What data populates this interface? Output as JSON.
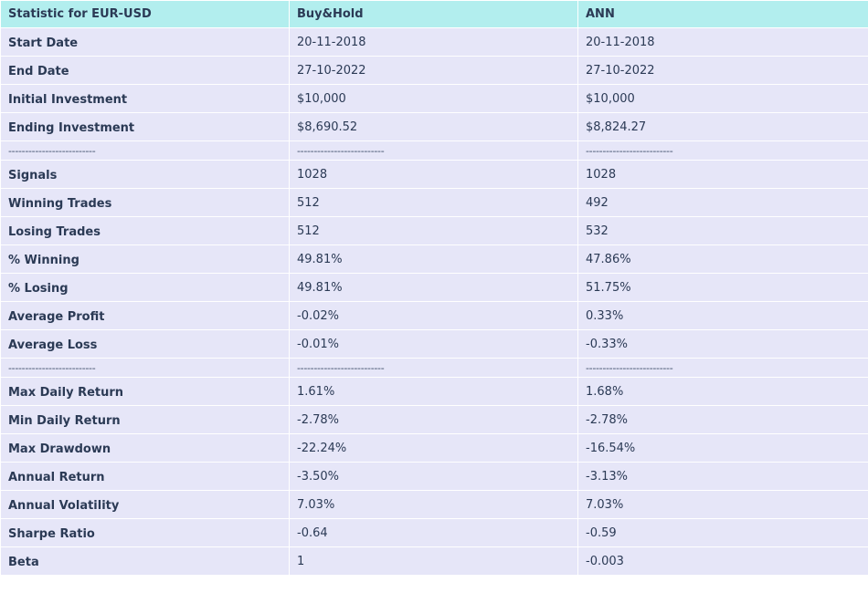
{
  "table": {
    "headers": [
      "Statistic for EUR-USD",
      "Buy&Hold",
      "ANN"
    ],
    "rows": [
      {
        "label": "Start Date",
        "buyhold": "20-11-2018",
        "ann": "20-11-2018"
      },
      {
        "label": "End Date",
        "buyhold": "27-10-2022",
        "ann": "27-10-2022"
      },
      {
        "label": "Initial Investment",
        "buyhold": "$10,000",
        "ann": "$10,000"
      },
      {
        "label": "Ending Investment",
        "buyhold": "$8,690.52",
        "ann": "$8,824.27"
      },
      {
        "label": "--------------------------",
        "buyhold": "--------------------------",
        "ann": "--------------------------",
        "separator": true
      },
      {
        "label": "Signals",
        "buyhold": "1028",
        "ann": "1028"
      },
      {
        "label": "Winning Trades",
        "buyhold": "512",
        "ann": "492"
      },
      {
        "label": "Losing Trades",
        "buyhold": "512",
        "ann": "532"
      },
      {
        "label": "% Winning",
        "buyhold": "49.81%",
        "ann": "47.86%"
      },
      {
        "label": "% Losing",
        "buyhold": "49.81%",
        "ann": "51.75%"
      },
      {
        "label": "Average Profit",
        "buyhold": "-0.02%",
        "ann": "0.33%"
      },
      {
        "label": "Average Loss",
        "buyhold": "-0.01%",
        "ann": "-0.33%"
      },
      {
        "label": "--------------------------",
        "buyhold": "--------------------------",
        "ann": "--------------------------",
        "separator": true
      },
      {
        "label": "Max Daily Return",
        "buyhold": "1.61%",
        "ann": "1.68%"
      },
      {
        "label": "Min Daily Return",
        "buyhold": "-2.78%",
        "ann": "-2.78%"
      },
      {
        "label": "Max Drawdown",
        "buyhold": "-22.24%",
        "ann": "-16.54%"
      },
      {
        "label": "Annual Return",
        "buyhold": "-3.50%",
        "ann": "-3.13%"
      },
      {
        "label": "Annual Volatility",
        "buyhold": "7.03%",
        "ann": "7.03%"
      },
      {
        "label": "Sharpe Ratio",
        "buyhold": "-0.64",
        "ann": "-0.59"
      },
      {
        "label": "Beta",
        "buyhold": "1",
        "ann": "-0.003"
      }
    ]
  },
  "colors": {
    "header_bg": "#b2eeee",
    "row_bg": "#e6e6f8",
    "text": "#2b3a55"
  }
}
